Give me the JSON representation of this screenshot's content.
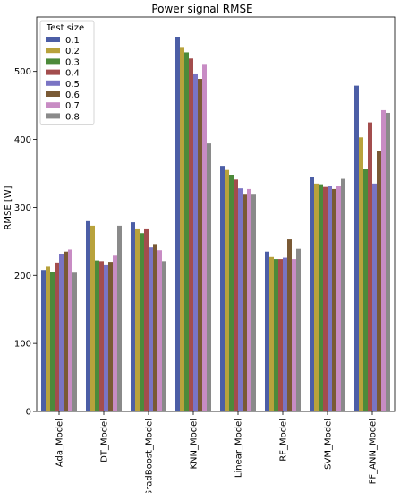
{
  "chart_data": {
    "type": "bar",
    "title": "Power signal RMSE",
    "xlabel": "",
    "ylabel": "RMSE [W]",
    "ylim": [
      0,
      580
    ],
    "yticks": [
      0,
      100,
      200,
      300,
      400,
      500
    ],
    "grid": false,
    "legend": {
      "title": "Test size",
      "placement": "top-left"
    },
    "categories": [
      "Ada_Model",
      "DT_Model",
      "GradBoost_Model",
      "KNN_Model",
      "Linear_Model",
      "RF_Model",
      "SVM_Model",
      "FF_ANN_Model"
    ],
    "series": [
      {
        "name": "0.1",
        "color": "#4c5ea6",
        "values": [
          208,
          281,
          278,
          551,
          361,
          235,
          345,
          479
        ]
      },
      {
        "name": "0.2",
        "color": "#b8a23c",
        "values": [
          213,
          273,
          269,
          536,
          355,
          227,
          335,
          403
        ]
      },
      {
        "name": "0.3",
        "color": "#4c8a3a",
        "values": [
          205,
          222,
          262,
          528,
          348,
          224,
          334,
          356
        ]
      },
      {
        "name": "0.4",
        "color": "#a34d4d",
        "values": [
          219,
          221,
          269,
          519,
          341,
          224,
          330,
          425
        ]
      },
      {
        "name": "0.5",
        "color": "#7a74c4",
        "values": [
          232,
          215,
          241,
          497,
          328,
          226,
          331,
          335
        ]
      },
      {
        "name": "0.6",
        "color": "#7a5a35",
        "values": [
          235,
          220,
          246,
          489,
          320,
          253,
          327,
          383
        ]
      },
      {
        "name": "0.7",
        "color": "#c88cc4",
        "values": [
          238,
          229,
          237,
          511,
          327,
          224,
          332,
          443
        ]
      },
      {
        "name": "0.8",
        "color": "#8a8a8a",
        "values": [
          204,
          273,
          221,
          394,
          320,
          239,
          342,
          439
        ]
      }
    ]
  }
}
